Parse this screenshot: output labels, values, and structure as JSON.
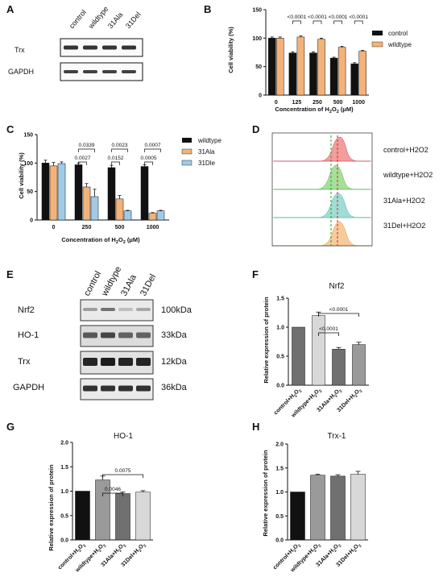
{
  "panels": {
    "A": {
      "label": "A",
      "lanes": [
        "control",
        "wildtype",
        "31Ala",
        "31Del"
      ],
      "rows": [
        "Trx",
        "GAPDH"
      ]
    },
    "B": {
      "label": "B",
      "ylabel": "Cell viability (%)",
      "xlabel_main": "Concentration of H",
      "xlabel_sub": "2",
      "xlabel_sub2": "O",
      "xlabel_sub3": "2",
      "xlabel_unit": "(μM)",
      "legend": [
        "control",
        "wildtype"
      ]
    },
    "C": {
      "label": "C",
      "ylabel": "Cell viability (%)",
      "xlabel_main": "Concentration of H",
      "xlabel_sub": "2",
      "xlabel_sub2": "O",
      "xlabel_sub3": "2",
      "xlabel_unit": "(μM)",
      "legend": [
        "wildtype",
        "31Ala",
        "31Dle"
      ]
    },
    "D": {
      "label": "D",
      "rows": [
        "control+H2O2",
        "wildtype+H2O2",
        "31Ala+H2O2",
        "31Del+H2O2"
      ]
    },
    "E": {
      "label": "E",
      "lanes": [
        "control",
        "wildtype",
        "31Ala",
        "31Del"
      ],
      "rows": [
        "Nrf2",
        "HO-1",
        "Trx",
        "GAPDH"
      ],
      "sizes": [
        "100kDa",
        "33kDa",
        "12kDa",
        "36kDa"
      ]
    },
    "F": {
      "label": "F",
      "title": "Nrf2",
      "ylabel": "Relative expression of protein"
    },
    "G": {
      "label": "G",
      "title": "HO-1",
      "ylabel": "Relative expression of protein"
    },
    "H": {
      "label": "H",
      "title": "Trx-1",
      "ylabel": "Relative expression of protein"
    }
  },
  "colors": {
    "black": "#111111",
    "orange": "#f2b27a",
    "blue": "#9fcbe8",
    "darkgray": "#707070",
    "midgray": "#9a9a9a",
    "lightgray": "#d8d8d8",
    "red": "#f28c8c",
    "green": "#9ad98a",
    "teal": "#8fd8d0",
    "flowOrange": "#f5c38a"
  },
  "chart_data": [
    {
      "id": "B",
      "type": "bar",
      "categories": [
        "0",
        "125",
        "250",
        "500",
        "1000"
      ],
      "ylim": [
        0,
        150
      ],
      "yticks": [
        0,
        50,
        100,
        150
      ],
      "xlabel": "Concentration of H2O2 (μM)",
      "ylabel": "Cell viability (%)",
      "legend_position": "right",
      "series": [
        {
          "name": "control",
          "color": "#111111",
          "values": [
            100,
            74,
            74,
            65,
            55
          ],
          "errors": [
            2,
            2,
            2,
            1.5,
            2
          ]
        },
        {
          "name": "wildtype",
          "color": "#f2b27a",
          "values": [
            100,
            102,
            98,
            84,
            77
          ],
          "errors": [
            2,
            2,
            2,
            1.5,
            1.5
          ]
        }
      ],
      "comparisons": [
        {
          "category": 1,
          "text": "<0.0001"
        },
        {
          "category": 2,
          "text": "<0.0001"
        },
        {
          "category": 3,
          "text": "<0.0001"
        },
        {
          "category": 4,
          "text": "<0.0001"
        }
      ]
    },
    {
      "id": "C",
      "type": "bar",
      "categories": [
        "0",
        "250",
        "500",
        "1000"
      ],
      "ylim": [
        0,
        150
      ],
      "yticks": [
        0,
        50,
        100,
        150
      ],
      "xlabel": "Concentration of H2O2 (μM)",
      "ylabel": "Cell viability (%)",
      "legend_position": "right",
      "series": [
        {
          "name": "wildtype",
          "color": "#111111",
          "values": [
            100,
            97,
            92,
            94
          ],
          "errors": [
            5,
            3,
            4,
            3
          ]
        },
        {
          "name": "31Ala",
          "color": "#f2b27a",
          "values": [
            95,
            58,
            37,
            12
          ],
          "errors": [
            6,
            6,
            6,
            1
          ]
        },
        {
          "name": "31Dle",
          "color": "#9fcbe8",
          "values": [
            99,
            41,
            16,
            16
          ],
          "errors": [
            3,
            13,
            1,
            1
          ]
        }
      ],
      "comparisons": [
        {
          "category": 1,
          "level": "inner",
          "text": "0.0027"
        },
        {
          "category": 1,
          "level": "outer",
          "text": "0.0339"
        },
        {
          "category": 2,
          "level": "inner",
          "text": "0.0152"
        },
        {
          "category": 2,
          "level": "outer",
          "text": "0.0023"
        },
        {
          "category": 3,
          "level": "inner",
          "text": "0.0005"
        },
        {
          "category": 3,
          "level": "outer",
          "text": "0.0007"
        }
      ]
    },
    {
      "id": "F",
      "type": "bar",
      "title": "Nrf2",
      "categories": [
        "control+H2O2",
        "wildtype+H2O2",
        "31Ala+H2O2",
        "31Del+H2O2"
      ],
      "ylim": [
        0,
        1.5
      ],
      "yticks": [
        0.0,
        0.5,
        1.0,
        1.5
      ],
      "ylabel": "Relative expression of protein",
      "values": [
        1.0,
        1.2,
        0.62,
        0.7
      ],
      "errors": [
        0,
        0.06,
        0.03,
        0.04
      ],
      "colors": [
        "#707070",
        "#d8d8d8",
        "#707070",
        "#9a9a9a"
      ],
      "comparisons": [
        {
          "from": 1,
          "to": 2,
          "text": "<0.0001"
        },
        {
          "from": 1,
          "to": 3,
          "text": "<0.0001"
        }
      ]
    },
    {
      "id": "G",
      "type": "bar",
      "title": "HO-1",
      "categories": [
        "control+H2O2",
        "wildtype+H2O2",
        "31Ala+H2O2",
        "31Del+H2O2"
      ],
      "ylim": [
        0,
        2.0
      ],
      "yticks": [
        0.0,
        0.5,
        1.0,
        1.5,
        2.0
      ],
      "ylabel": "Relative expression of protein",
      "values": [
        1.0,
        1.23,
        0.95,
        0.98
      ],
      "errors": [
        0,
        0.08,
        0.03,
        0.03
      ],
      "colors": [
        "#111111",
        "#9a9a9a",
        "#707070",
        "#d8d8d8"
      ],
      "comparisons": [
        {
          "from": 1,
          "to": 2,
          "text": "0.0046"
        },
        {
          "from": 1,
          "to": 3,
          "text": "0.0075"
        }
      ]
    },
    {
      "id": "H",
      "type": "bar",
      "title": "Trx-1",
      "categories": [
        "control+H2O2",
        "wildtype+H2O2",
        "31Ala+H2O2",
        "31Del+H2O2"
      ],
      "ylim": [
        0,
        2.0
      ],
      "yticks": [
        0.0,
        0.5,
        1.0,
        1.5,
        2.0
      ],
      "ylabel": "Relative expression of protein",
      "values": [
        1.0,
        1.35,
        1.33,
        1.37
      ],
      "errors": [
        0,
        0.02,
        0.03,
        0.06
      ],
      "colors": [
        "#111111",
        "#9a9a9a",
        "#707070",
        "#d8d8d8"
      ],
      "comparisons": []
    }
  ]
}
